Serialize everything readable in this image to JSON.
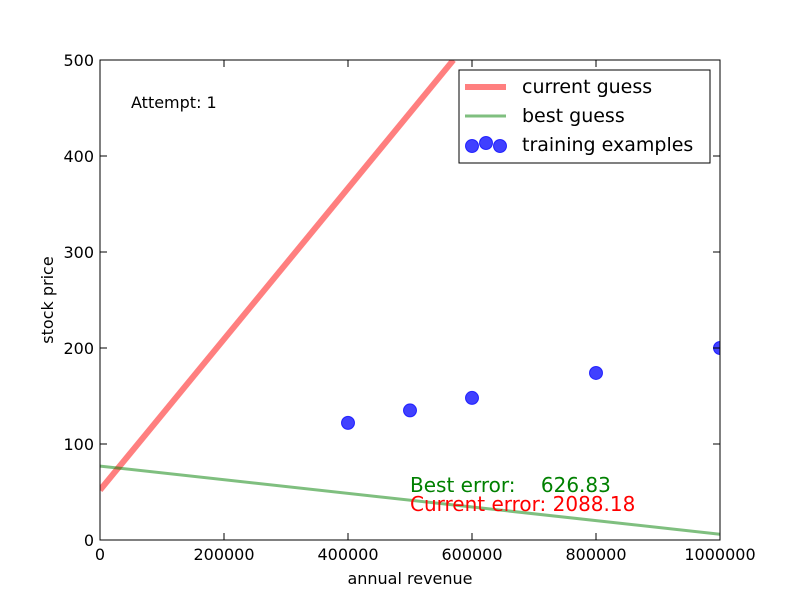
{
  "chart_data": {
    "type": "scatter",
    "xlabel": "annual revenue",
    "ylabel": "stock price",
    "xlim": [
      0,
      1000000
    ],
    "ylim": [
      0,
      500
    ],
    "xticks": [
      0,
      200000,
      400000,
      600000,
      800000,
      1000000
    ],
    "yticks": [
      0,
      100,
      200,
      300,
      400,
      500
    ],
    "grid": false,
    "legend_position": "top-right",
    "series": [
      {
        "name": "current guess",
        "kind": "line",
        "color": "#ff0000",
        "x": [
          0,
          570000
        ],
        "y": [
          52,
          500
        ]
      },
      {
        "name": "best guess",
        "kind": "line",
        "color": "#008000",
        "x": [
          0,
          1000000
        ],
        "y": [
          77,
          6
        ]
      },
      {
        "name": "training examples",
        "kind": "scatter",
        "color": "#0000ff",
        "x": [
          400000,
          500000,
          600000,
          800000,
          1000000
        ],
        "y": [
          122,
          135,
          148,
          174,
          200
        ]
      }
    ],
    "annotations": {
      "attempt": "Attempt: 1",
      "best_error": "Best error:    626.83",
      "current_error": "Current error: 2088.18"
    }
  }
}
